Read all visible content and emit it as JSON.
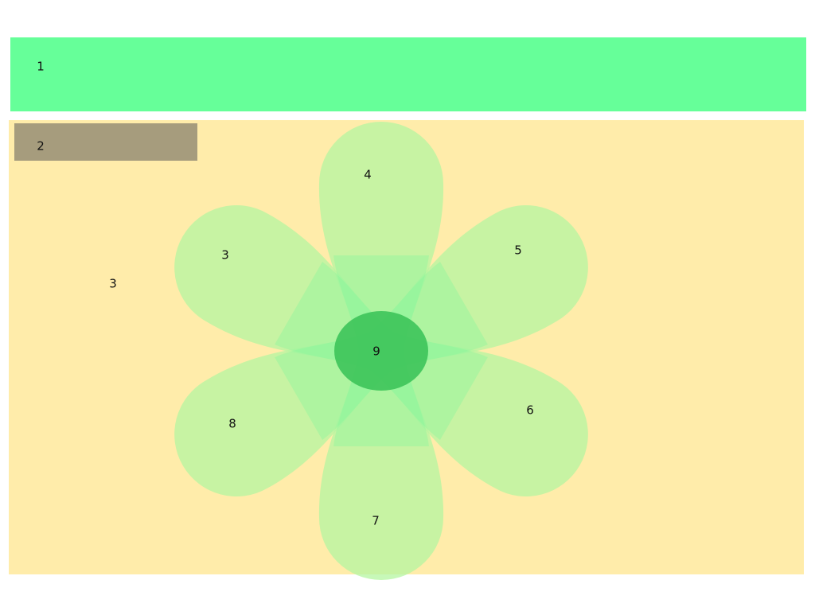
{
  "colors": {
    "page_background": "#ffffff",
    "region_1_fill": "#66ff99",
    "region_3_fill": "#ffecaa",
    "region_2_fill": "#a69c7d",
    "petal_fill": "#b4f5a0",
    "petal_overlap_fill": "#80f59a",
    "center_fill": "#3dc45a"
  },
  "regions": {
    "r1": {
      "label": "1"
    },
    "r2": {
      "label": "2"
    },
    "r3": {
      "label": "3"
    }
  },
  "flower": {
    "petals": [
      {
        "id": "p3",
        "label": "3"
      },
      {
        "id": "p4",
        "label": "4"
      },
      {
        "id": "p5",
        "label": "5"
      },
      {
        "id": "p6",
        "label": "6"
      },
      {
        "id": "p7",
        "label": "7"
      },
      {
        "id": "p8",
        "label": "8"
      }
    ],
    "center": {
      "label": "9"
    }
  }
}
